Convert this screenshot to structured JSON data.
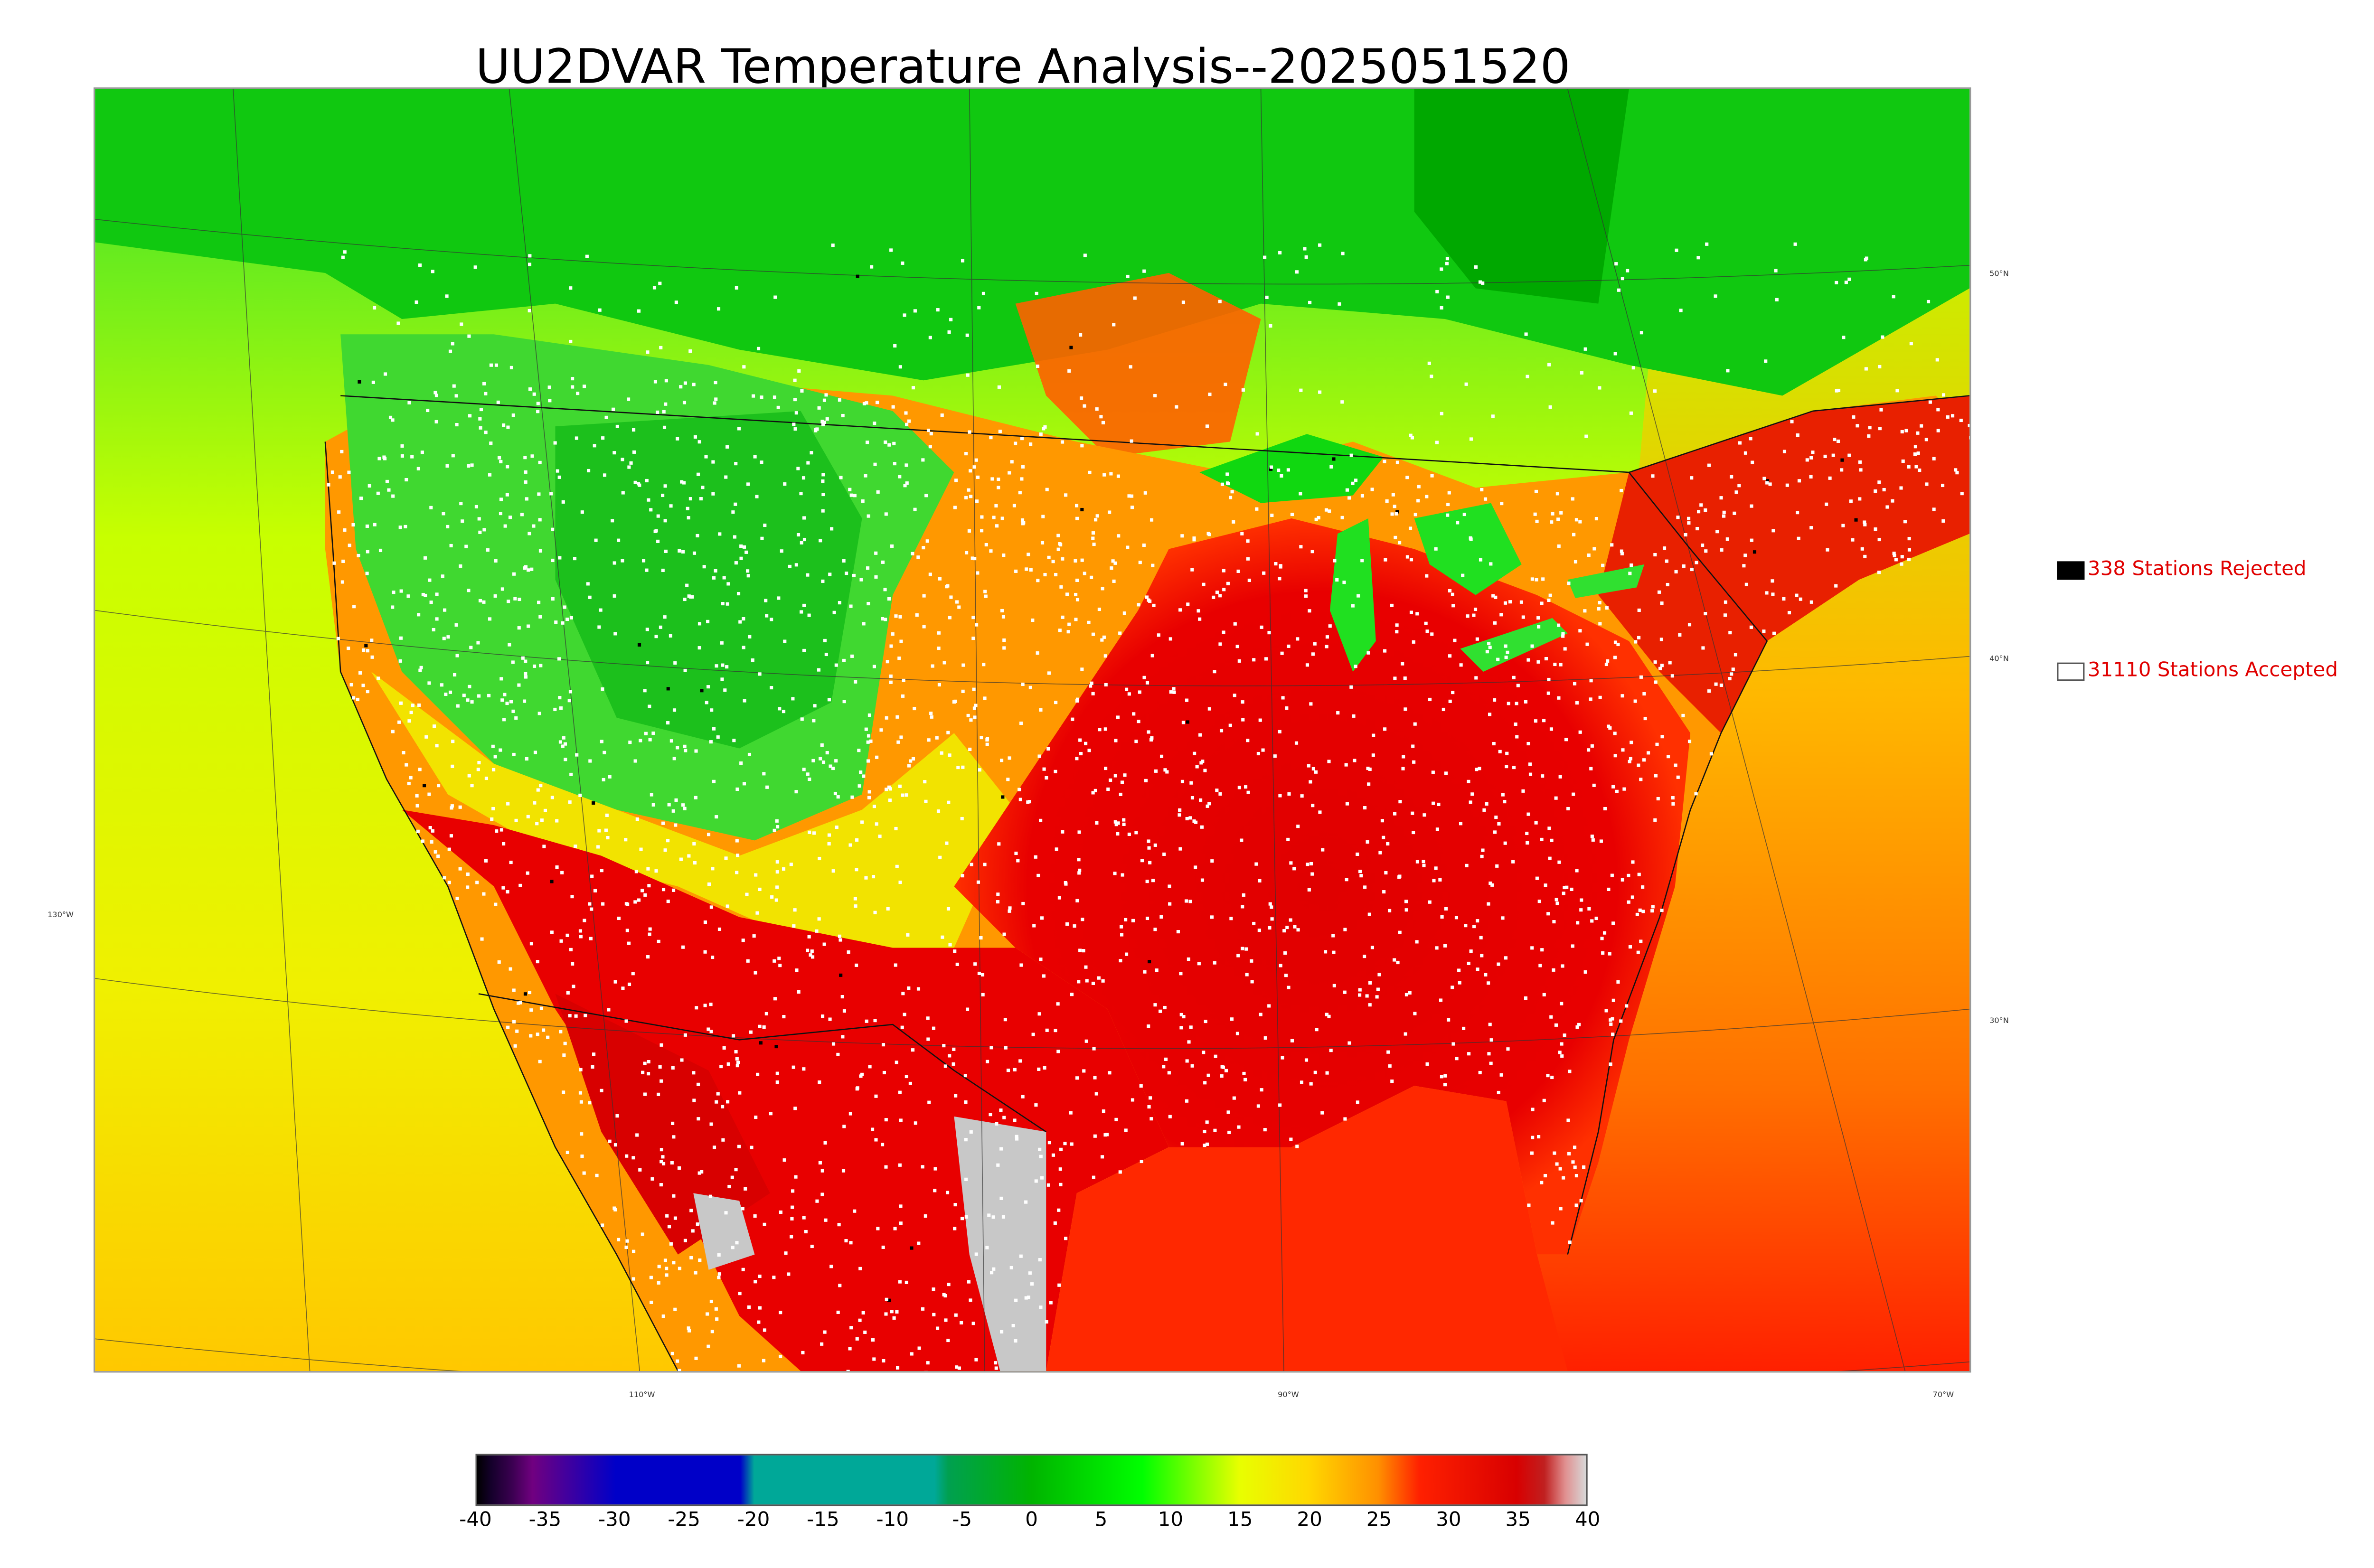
{
  "title": "UU2DVAR Temperature Analysis--2025051520",
  "map": {
    "lat_labels": [
      "50°N",
      "40°N",
      "30°N"
    ],
    "lon_labels": [
      "130°W",
      "110°W",
      "90°W",
      "70°W"
    ]
  },
  "legend": {
    "rejected": {
      "label": "338 Stations Rejected",
      "color": "#000000"
    },
    "accepted": {
      "label": "31110 Stations Accepted",
      "color": "#ffffff"
    }
  },
  "colorbar": {
    "ticks": [
      "-40",
      "-35",
      "-30",
      "-25",
      "-20",
      "-15",
      "-10",
      "-5",
      "0",
      "5",
      "10",
      "15",
      "20",
      "25",
      "30",
      "35",
      "40"
    ],
    "range": [
      -40,
      40
    ],
    "stops": [
      {
        "v": -40,
        "c": "#000000"
      },
      {
        "v": -39,
        "c": "#14002a"
      },
      {
        "v": -37.5,
        "c": "#3a0050"
      },
      {
        "v": -36,
        "c": "#700080"
      },
      {
        "v": -30,
        "c": "#0000c8"
      },
      {
        "v": -21,
        "c": "#0000c8"
      },
      {
        "v": -20,
        "c": "#00a898"
      },
      {
        "v": -7,
        "c": "#00a898"
      },
      {
        "v": -6,
        "c": "#00a050"
      },
      {
        "v": 0,
        "c": "#00b400"
      },
      {
        "v": 8,
        "c": "#00ff00"
      },
      {
        "v": 15,
        "c": "#e8ff00"
      },
      {
        "v": 20,
        "c": "#ffd800"
      },
      {
        "v": 25,
        "c": "#ff9000"
      },
      {
        "v": 28,
        "c": "#ff2000"
      },
      {
        "v": 35,
        "c": "#d80000"
      },
      {
        "v": 37,
        "c": "#c02020"
      },
      {
        "v": 38.5,
        "c": "#e09090"
      },
      {
        "v": 40,
        "c": "#d8d8d8"
      }
    ]
  },
  "colors": {
    "ocean_pacific": "#e0ff00",
    "ocean_atlantic": "#ffb000",
    "gulf": "#ff2000",
    "canada": "#00e000",
    "hot": "#e00000",
    "warm": "#ff9a00",
    "mild": "#e8f000",
    "cool": "#30d830",
    "station_accepted": "#ffffff",
    "station_rejected": "#000000"
  }
}
